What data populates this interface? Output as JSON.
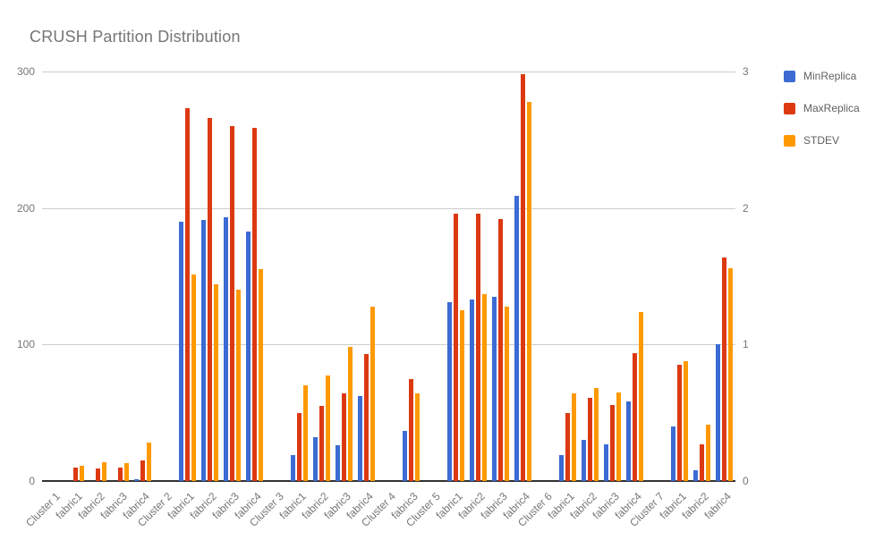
{
  "title": "CRUSH Partition Distribution",
  "colors": {
    "background": "#ffffff",
    "title_text": "#757575",
    "axis_text": "#757575",
    "legend_text": "#616161",
    "gridline": "#cccccc",
    "baseline": "#333333",
    "min_replica": "#3B6BD3",
    "max_replica": "#DC3912",
    "stdev": "#FF9900"
  },
  "chart_data": {
    "type": "bar",
    "title": "CRUSH Partition Distribution",
    "grid": true,
    "legend_position": "right",
    "categories": [
      "Cluster 1",
      "fabric1",
      "fabric2",
      "fabric3",
      "fabric4",
      "Cluster 2",
      "fabric1",
      "fabric2",
      "fabric3",
      "fabric4",
      "Cluster 3",
      "fabric1",
      "fabric2",
      "fabric3",
      "fabric4",
      "Cluster 4",
      "fabric3",
      "Cluster 5",
      "fabric1",
      "fabric2",
      "fabric3",
      "fabric4",
      "Cluster 6",
      "fabric1",
      "fabric2",
      "fabric3",
      "fabric4",
      "Cluster 7",
      "fabric1",
      "fabric2",
      "fabric4"
    ],
    "left_axis": {
      "ticks": [
        0,
        100,
        200,
        300
      ],
      "range": [
        0,
        300
      ]
    },
    "right_axis": {
      "ticks": [
        0,
        1,
        2,
        3
      ],
      "range": [
        0,
        3
      ]
    },
    "series": [
      {
        "name": "MinReplica",
        "axis": "left",
        "color": "#3B6BD3",
        "values": [
          null,
          0,
          0,
          0,
          1,
          null,
          190,
          191,
          193,
          183,
          null,
          19,
          32,
          26,
          62,
          null,
          37,
          null,
          131,
          133,
          135,
          209,
          null,
          19,
          30,
          27,
          58,
          null,
          40,
          8,
          100
        ]
      },
      {
        "name": "MaxReplica",
        "axis": "left",
        "color": "#DC3912",
        "values": [
          null,
          10,
          9,
          10,
          15,
          null,
          273,
          266,
          260,
          259,
          null,
          50,
          55,
          64,
          93,
          null,
          75,
          null,
          196,
          196,
          192,
          298,
          null,
          50,
          61,
          56,
          94,
          null,
          85,
          27,
          164
        ]
      },
      {
        "name": "STDEV",
        "axis": "right",
        "color": "#FF9900",
        "values": [
          null,
          0.11,
          0.14,
          0.13,
          0.28,
          null,
          1.51,
          1.44,
          1.4,
          1.55,
          null,
          0.7,
          0.77,
          0.98,
          1.28,
          null,
          0.64,
          null,
          1.25,
          1.37,
          1.28,
          2.78,
          null,
          0.64,
          0.68,
          0.65,
          1.24,
          null,
          0.88,
          0.41,
          1.56
        ]
      }
    ]
  }
}
